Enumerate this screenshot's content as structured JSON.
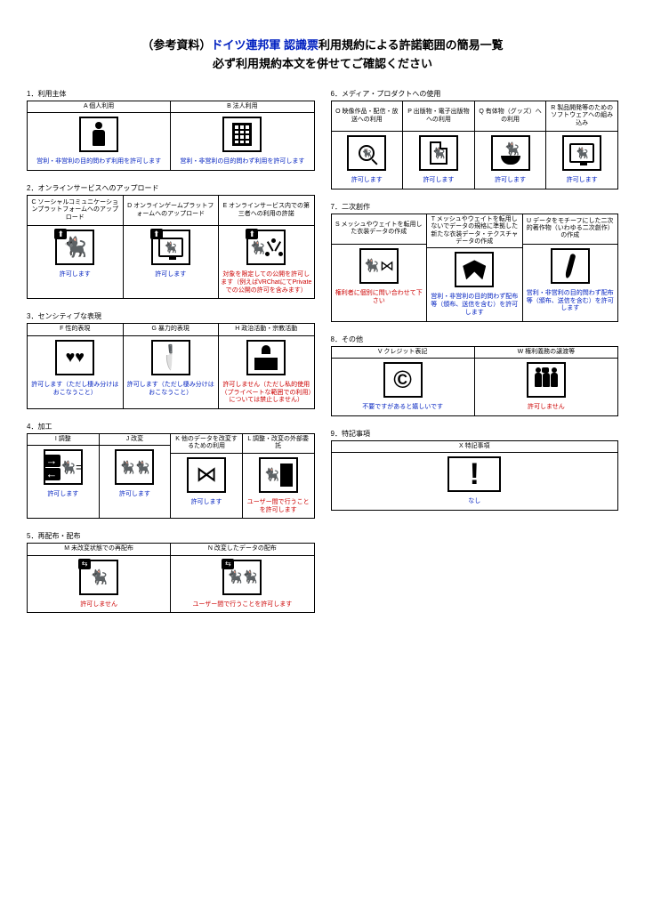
{
  "header": {
    "prefix": "（参考資料）",
    "link": "ドイツ連邦軍 認識票",
    "suffix": "利用規約による許諾範囲の簡易一覧",
    "line2": "必ず利用規約本文を併せてご確認ください"
  },
  "sections_left": [
    {
      "title": "1．利用主体",
      "cells": [
        {
          "label": "A 個人利用",
          "caption": "営利・非営利の目的問わず利用を許可します",
          "color": "blue",
          "icon": "person"
        },
        {
          "label": "B 法人利用",
          "caption": "営利・非営利の目的問わず利用を許可します",
          "color": "blue",
          "icon": "building"
        }
      ]
    },
    {
      "title": "2．オンラインサービスへのアップロード",
      "tall": true,
      "cells": [
        {
          "label": "C ソーシャルコミュニケーションプラットフォームへのアップロード",
          "caption": "許可します",
          "color": "blue",
          "icon": "cat-upload"
        },
        {
          "label": "D オンラインゲームプラットフォームへのアップロード",
          "caption": "許可します",
          "color": "blue",
          "icon": "cat-upload-screen"
        },
        {
          "label": "E オンラインサービス内での第三者への利用の許諾",
          "caption": "対象を限定しての公開を許可します（例えばVRChatにてPrivateでの公開の許可を含みます）",
          "color": "red",
          "icon": "cat-network"
        }
      ]
    },
    {
      "title": "3．センシティブな表現",
      "cells": [
        {
          "label": "F 性的表現",
          "caption": "許可します（ただし棲み分けはおこなうこと）",
          "color": "blue",
          "icon": "hearts"
        },
        {
          "label": "G 暴力的表現",
          "caption": "許可します（ただし棲み分けはおこなうこと）",
          "color": "blue",
          "icon": "knife"
        },
        {
          "label": "H 政治活動・宗教活動",
          "caption": "許可しません（ただし私的使用（プライベートな範囲での利用）については禁止しません）",
          "color": "red",
          "icon": "podium"
        }
      ]
    },
    {
      "title": "4．加工",
      "cells": [
        {
          "label": "I 調整",
          "caption": "許可します",
          "color": "blue",
          "icon": "arrows-cat"
        },
        {
          "label": "J 改変",
          "caption": "許可します",
          "color": "blue",
          "icon": "twocats"
        },
        {
          "label": "K 他のデータを改変するための利用",
          "caption": "許可します",
          "color": "blue",
          "icon": "bow"
        },
        {
          "label": "L 調整・改変の外部委託",
          "caption": "ユーザー間で行うことを許可します",
          "color": "red",
          "icon": "doorcat"
        }
      ]
    },
    {
      "title": "5．再配布・配布",
      "cells": [
        {
          "label": "M 未改変状態での再配布",
          "caption": "許可しません",
          "color": "red",
          "icon": "share-cat"
        },
        {
          "label": "N 改変したデータの配布",
          "caption": "ユーザー間で行うことを許可します",
          "color": "red",
          "icon": "share-twocats"
        }
      ]
    }
  ],
  "sections_right": [
    {
      "title": "6．メディア・プロダクトへの使用",
      "tall": true,
      "cells": [
        {
          "label": "O 映像作品・配信・放送への利用",
          "caption": "許可します",
          "color": "blue",
          "icon": "magnify-cat"
        },
        {
          "label": "P 出版物・電子出版物への利用",
          "caption": "許可します",
          "color": "blue",
          "icon": "doc-cat"
        },
        {
          "label": "Q 有体物（グッズ）への利用",
          "caption": "許可します",
          "color": "blue",
          "icon": "bowl-cat"
        },
        {
          "label": "R 製品開発等のためのソフトウェアへの組み込み",
          "caption": "許可します",
          "color": "blue",
          "icon": "monitor-cat"
        }
      ]
    },
    {
      "title": "7．二次創作",
      "tall": true,
      "cells": [
        {
          "label": "S メッシュやウェイトを転用した衣装データの作成",
          "caption": "権利者に個別に問い合わせて下さい",
          "color": "red",
          "icon": "catbow"
        },
        {
          "label": "T メッシュやウェイトを転用しないでデータの規格に準拠した新たな衣装データ・テクスチャデータの作成",
          "caption": "営利・非営利の目的問わず配布等（頒布、送信を含む）を許可します",
          "color": "blue",
          "icon": "bigbow"
        },
        {
          "label": "U データをモチーフにした二次的著作物（いわゆる二次創作）の作成",
          "caption": "営利・非営利の目的問わず配布等（頒布、送信を含む）を許可します",
          "color": "blue",
          "icon": "pen"
        }
      ]
    },
    {
      "title": "8．その他",
      "cells": [
        {
          "label": "V クレジット表記",
          "caption": "不要ですがあると嬉しいです",
          "color": "blue",
          "icon": "copyright"
        },
        {
          "label": "W 権利義務の譲渡等",
          "caption": "許可しません",
          "color": "red",
          "icon": "people3"
        }
      ]
    },
    {
      "title": "9．特記事項",
      "single": true,
      "cells": [
        {
          "label": "X 特記事項",
          "caption": "なし",
          "color": "blue",
          "icon": "exclaim"
        }
      ]
    }
  ]
}
